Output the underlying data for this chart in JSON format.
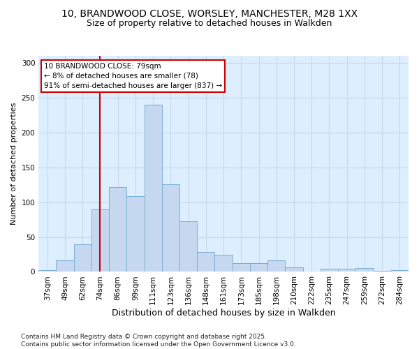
{
  "title_line1": "10, BRANDWOOD CLOSE, WORSLEY, MANCHESTER, M28 1XX",
  "title_line2": "Size of property relative to detached houses in Walkden",
  "xlabel": "Distribution of detached houses by size in Walkden",
  "ylabel": "Number of detached properties",
  "footer": "Contains HM Land Registry data © Crown copyright and database right 2025.\nContains public sector information licensed under the Open Government Licence v3.0.",
  "bin_labels": [
    "37sqm",
    "49sqm",
    "62sqm",
    "74sqm",
    "86sqm",
    "99sqm",
    "111sqm",
    "123sqm",
    "136sqm",
    "148sqm",
    "161sqm",
    "173sqm",
    "185sqm",
    "198sqm",
    "210sqm",
    "222sqm",
    "235sqm",
    "247sqm",
    "259sqm",
    "272sqm",
    "284sqm"
  ],
  "bar_values": [
    2,
    16,
    40,
    90,
    122,
    109,
    240,
    126,
    73,
    29,
    25,
    12,
    12,
    16,
    6,
    0,
    4,
    4,
    5,
    1,
    2
  ],
  "bar_color": "#c5d8f0",
  "bar_edge_color": "#7aaed4",
  "property_line_bin": 3.5,
  "annotation_text": "10 BRANDWOOD CLOSE: 79sqm\n← 8% of detached houses are smaller (78)\n91% of semi-detached houses are larger (837) →",
  "vline_color": "#cc0000",
  "annotation_box_color": "#ffffff",
  "annotation_box_edge": "#cc0000",
  "ylim": [
    0,
    310
  ],
  "yticks": [
    0,
    50,
    100,
    150,
    200,
    250,
    300
  ],
  "grid_color": "#c8d8e8",
  "fig_background": "#ffffff",
  "plot_background": "#ddeeff",
  "title_fontsize": 10,
  "subtitle_fontsize": 9,
  "xlabel_fontsize": 9,
  "ylabel_fontsize": 8,
  "tick_fontsize": 7.5,
  "footer_fontsize": 6.5,
  "annotation_fontsize": 7.5
}
